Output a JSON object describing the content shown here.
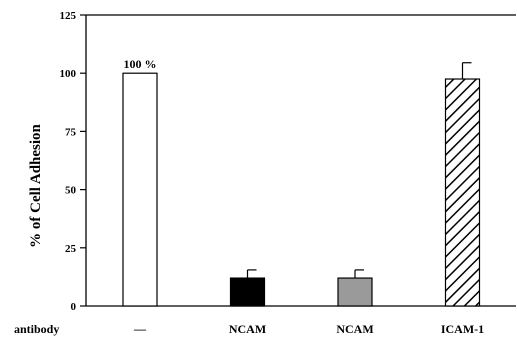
{
  "chart_data": {
    "type": "bar",
    "ylabel": "% of Cell Adhesion",
    "row_label": "antibody",
    "categories": [
      "—",
      "NCAM",
      "NCAM",
      "ICAM-1"
    ],
    "values": [
      100,
      12,
      12,
      97.5
    ],
    "errors": [
      0,
      3.5,
      3.5,
      7
    ],
    "ylim": [
      0,
      125
    ],
    "yticks": [
      "0",
      "25",
      "50",
      "75",
      "100",
      "125"
    ],
    "data_labels": [
      "100 %",
      "",
      "",
      ""
    ],
    "bar_fills": [
      "white",
      "black",
      "gray",
      "hatched"
    ],
    "grid": false,
    "legend": "none"
  },
  "colors": {
    "axis": "#000000",
    "bar_white": "#ffffff",
    "bar_black": "#000000",
    "bar_gray": "#9a9a9a",
    "hatch": "#000000"
  }
}
